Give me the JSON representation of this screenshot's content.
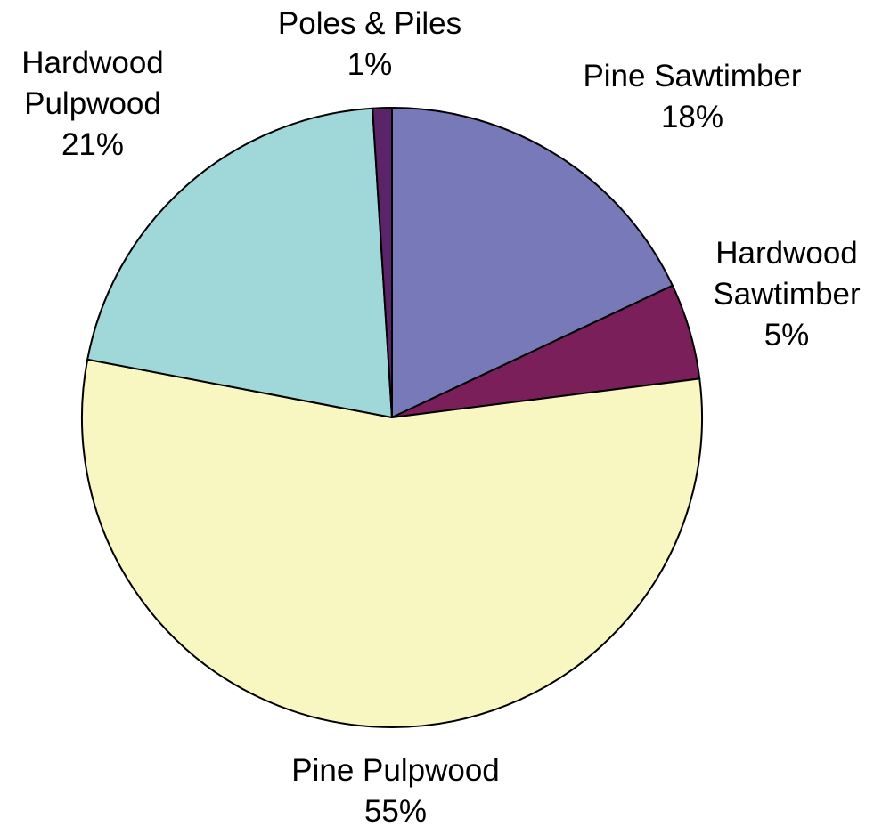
{
  "chart_data": {
    "type": "pie",
    "title": "",
    "start_angle_deg": 0,
    "direction": "clockwise",
    "slices": [
      {
        "label_lines": [
          "Pine Sawtimber"
        ],
        "percent_label": "18%",
        "value": 18,
        "color": "#7779b8"
      },
      {
        "label_lines": [
          "Hardwood",
          "Sawtimber"
        ],
        "percent_label": "5%",
        "value": 5,
        "color": "#7a1f5a"
      },
      {
        "label_lines": [
          "Pine Pulpwood"
        ],
        "percent_label": "55%",
        "value": 55,
        "color": "#f8f6c1"
      },
      {
        "label_lines": [
          "Hardwood",
          "Pulpwood"
        ],
        "percent_label": "21%",
        "value": 21,
        "color": "#a0d8da"
      },
      {
        "label_lines": [
          "Poles & Piles"
        ],
        "percent_label": "1%",
        "value": 1,
        "color": "#5b2469"
      }
    ]
  }
}
